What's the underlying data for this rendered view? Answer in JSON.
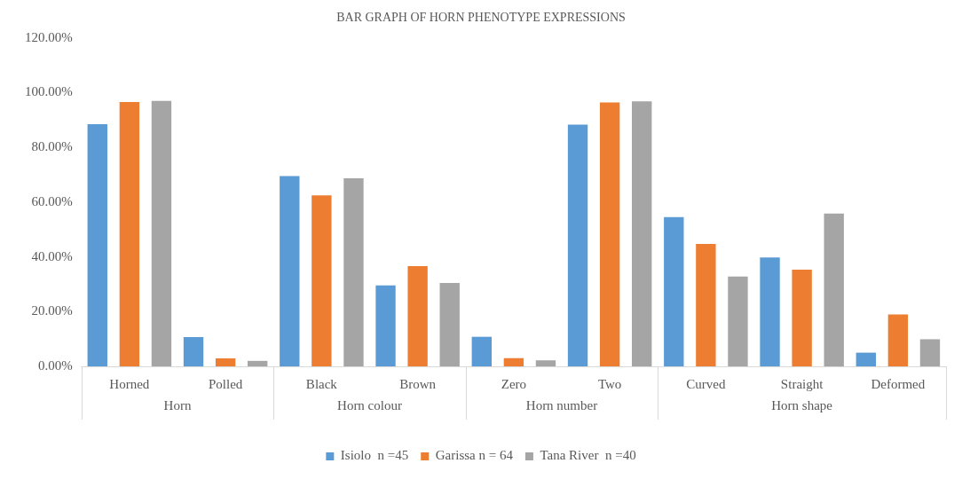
{
  "chart_data": {
    "type": "bar",
    "title": "BAR GRAPH OF HORN PHENOTYPE EXPRESSIONS",
    "categories": [
      "Horned",
      "Polled",
      "Black",
      "Brown",
      "Zero",
      "Two",
      "Curved",
      "Straight",
      "Deformed"
    ],
    "series": [
      {
        "name": "Isiolo  n =45",
        "color": "#5b9bd5",
        "values": [
          88.5,
          10.7,
          69.5,
          29.6,
          10.8,
          88.3,
          54.5,
          39.8,
          5.0
        ]
      },
      {
        "name": "Garissa n = 64",
        "color": "#ed7d31",
        "values": [
          96.6,
          2.9,
          62.5,
          36.6,
          3.0,
          96.4,
          44.7,
          35.3,
          19.0
        ]
      },
      {
        "name": "Tana River  n =40",
        "color": "#a5a5a5",
        "values": [
          97.0,
          2.0,
          68.7,
          30.5,
          2.2,
          96.8,
          32.8,
          55.8,
          9.9
        ]
      }
    ],
    "annotations": [
      "Horn",
      "Horn colour",
      "Horn number",
      "Horn shape"
    ],
    "ylim": [
      0,
      120
    ],
    "yticks": [
      {
        "value": 0,
        "label": "0.00%"
      },
      {
        "value": 20,
        "label": "20.00%"
      },
      {
        "value": 40,
        "label": "40.00%"
      },
      {
        "value": 60,
        "label": "60.00%"
      },
      {
        "value": 80,
        "label": "80.00%"
      },
      {
        "value": 100,
        "label": "100.00%"
      },
      {
        "value": 120,
        "label": "120.00%"
      }
    ],
    "grid": false,
    "legend": "bottom"
  }
}
